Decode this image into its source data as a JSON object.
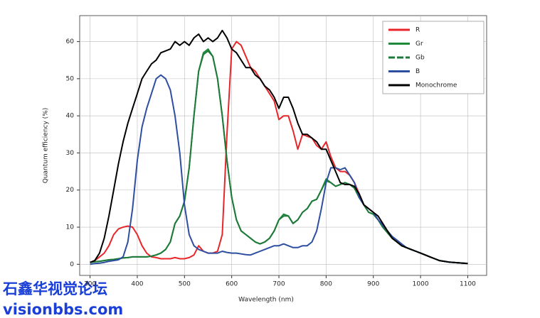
{
  "chart_data": {
    "type": "line",
    "xlabel": "Wavelength (nm)",
    "ylabel": "Quantum efficiency (%)",
    "x": [
      300,
      310,
      320,
      330,
      340,
      350,
      360,
      370,
      380,
      390,
      400,
      410,
      420,
      430,
      440,
      450,
      460,
      470,
      480,
      490,
      500,
      510,
      520,
      530,
      540,
      550,
      560,
      570,
      580,
      590,
      600,
      610,
      620,
      630,
      640,
      650,
      660,
      670,
      680,
      690,
      700,
      710,
      720,
      730,
      740,
      750,
      760,
      770,
      780,
      790,
      800,
      810,
      820,
      830,
      840,
      850,
      860,
      870,
      880,
      890,
      900,
      910,
      920,
      930,
      940,
      950,
      960,
      970,
      980,
      990,
      1000,
      1010,
      1020,
      1030,
      1040,
      1050,
      1060,
      1070,
      1080,
      1090,
      1100
    ],
    "series": [
      {
        "name": "R",
        "color": "#e8262a",
        "dash": false,
        "values": [
          0.5,
          1,
          2,
          3,
          5,
          8,
          9.5,
          10,
          10.3,
          10,
          8,
          5,
          3,
          2,
          1.8,
          1.5,
          1.5,
          1.5,
          1.8,
          1.5,
          1.5,
          1.8,
          2.5,
          5,
          3.5,
          3,
          3,
          3.5,
          8,
          35,
          58,
          60,
          59,
          56,
          53,
          52,
          50,
          48,
          46,
          44,
          39,
          40,
          40,
          36,
          31,
          35,
          34.5,
          34,
          32,
          31,
          33,
          29,
          26,
          25,
          25,
          24,
          22,
          19,
          16,
          15,
          14,
          12,
          10.5,
          8.5,
          7,
          6,
          5,
          4.5,
          4,
          3.5,
          3,
          2.5,
          2,
          1.5,
          1,
          0.8,
          0.6,
          0.5,
          0.4,
          0.3,
          0.2
        ]
      },
      {
        "name": "Gr",
        "color": "#1e8a3c",
        "dash": false,
        "values": [
          0.5,
          0.7,
          0.8,
          1,
          1.2,
          1.3,
          1.5,
          1.7,
          1.8,
          2,
          2,
          2,
          2,
          2.2,
          2.5,
          3,
          4,
          6,
          11,
          13,
          17,
          26,
          40,
          52,
          57,
          58,
          56,
          50,
          40,
          28,
          18,
          12,
          9,
          8,
          7,
          6,
          5.5,
          6,
          7,
          9,
          12,
          13.5,
          13,
          11,
          12,
          14,
          15,
          17,
          17.5,
          20,
          23,
          22,
          21,
          21.5,
          22,
          21.5,
          20.5,
          18,
          16,
          14,
          13.5,
          12,
          10,
          8.5,
          7,
          6,
          5,
          4.5,
          4,
          3.5,
          3,
          2.5,
          2,
          1.5,
          1,
          0.8,
          0.6,
          0.5,
          0.4,
          0.3,
          0.2
        ]
      },
      {
        "name": "Gb",
        "color": "#1e7a38",
        "dash": true,
        "values": [
          0.5,
          0.7,
          0.8,
          1,
          1.2,
          1.3,
          1.5,
          1.7,
          1.8,
          2,
          2,
          2,
          2,
          2.2,
          2.5,
          3,
          4,
          6,
          11,
          13,
          17,
          26,
          40,
          52,
          56.5,
          57.5,
          56,
          50,
          40,
          28,
          18,
          12,
          9,
          8,
          7,
          6,
          5.5,
          6,
          7,
          9,
          12,
          13,
          13,
          11,
          12,
          14,
          15,
          17,
          17.5,
          20,
          22.5,
          22,
          21,
          21.5,
          22,
          21.5,
          20.5,
          18,
          16,
          14,
          13.5,
          12,
          10,
          8.5,
          7,
          6,
          5,
          4.5,
          4,
          3.5,
          3,
          2.5,
          2,
          1.5,
          1,
          0.8,
          0.6,
          0.5,
          0.4,
          0.3,
          0.2
        ]
      },
      {
        "name": "B",
        "color": "#2e4fa0",
        "dash": false,
        "values": [
          0,
          0.2,
          0.3,
          0.5,
          0.8,
          1,
          1.2,
          2,
          6,
          15,
          28,
          37,
          42,
          46,
          50,
          51,
          50,
          47,
          40,
          30,
          16,
          8,
          5,
          4,
          3.5,
          3,
          3,
          3,
          3.5,
          3.2,
          3,
          3,
          2.8,
          2.6,
          2.5,
          3,
          3.5,
          4,
          4.5,
          5,
          5,
          5.5,
          5,
          4.5,
          4.5,
          5,
          5,
          6,
          9,
          15,
          22,
          26,
          26,
          25.5,
          26,
          24,
          22,
          18,
          16,
          15,
          14,
          12,
          10.5,
          9,
          7.5,
          6.5,
          5.5,
          4.5,
          4,
          3.5,
          3,
          2.5,
          2,
          1.5,
          1,
          0.8,
          0.6,
          0.5,
          0.4,
          0.3,
          0.2
        ]
      },
      {
        "name": "Monochrome",
        "color": "#000000",
        "dash": false,
        "values": [
          0.5,
          1,
          3,
          7,
          13,
          20,
          27,
          33,
          38,
          42,
          46,
          50,
          52,
          54,
          55,
          57,
          57.5,
          58,
          60,
          59,
          60,
          59,
          61,
          62,
          60,
          61,
          60,
          61,
          63,
          61,
          58,
          57,
          55,
          53,
          53,
          51,
          50,
          48,
          47,
          45,
          42,
          45,
          45,
          42,
          38,
          35,
          35,
          34,
          33,
          31,
          31,
          28,
          25,
          22,
          21.5,
          21.5,
          21,
          19,
          16,
          15,
          14,
          13,
          11,
          9,
          7,
          6,
          5,
          4.5,
          4,
          3.5,
          3,
          2.5,
          2,
          1.5,
          1,
          0.8,
          0.6,
          0.5,
          0.4,
          0.3,
          0.2
        ]
      }
    ],
    "xlim": [
      278,
      1140
    ],
    "xticks": [
      300,
      400,
      500,
      600,
      700,
      800,
      900,
      1000,
      1100
    ],
    "ylim": [
      -3,
      67
    ],
    "yticks": [
      0,
      10,
      20,
      30,
      40,
      50,
      60
    ],
    "grid": true,
    "legend": "top-right"
  },
  "watermark": {
    "line1": "石鑫华视觉论坛",
    "line2": "visionbbs.com"
  }
}
